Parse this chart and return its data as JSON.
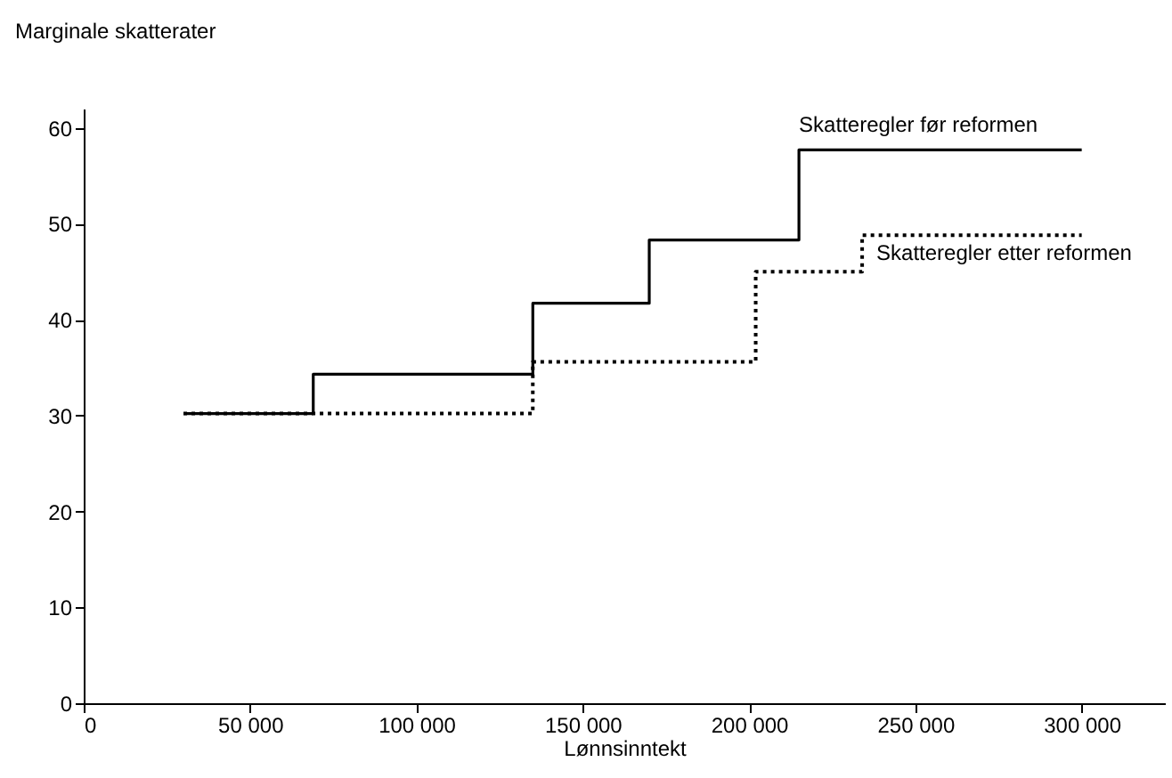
{
  "chart_data": {
    "type": "step",
    "ylabel": "Marginale skatterater",
    "xlabel": "Lønnsinntekt",
    "xlim": [
      0,
      325000
    ],
    "ylim": [
      0,
      62
    ],
    "xticks": [
      0,
      {
        "value": 50000,
        "label": "50 000"
      },
      {
        "value": 100000,
        "label": "100 000"
      },
      {
        "value": 150000,
        "label": "150 000"
      },
      {
        "value": 200000,
        "label": "200 000"
      },
      {
        "value": 250000,
        "label": "250 000"
      },
      {
        "value": 300000,
        "label": "300 000"
      }
    ],
    "yticks": [
      0,
      10,
      20,
      30,
      40,
      50,
      60
    ],
    "grid": false,
    "legend": false,
    "series": [
      {
        "name": "Skatteregler før reformen",
        "color": "#000000",
        "line_style": "solid",
        "x": [
          30000,
          69000,
          135000,
          170000,
          215000,
          300000
        ],
        "values": [
          30.2,
          34.3,
          41.7,
          48.3,
          57.7,
          57.7
        ]
      },
      {
        "name": "Skatteregler etter reformen",
        "color": "#000000",
        "line_style": "dotted",
        "x": [
          30000,
          135000,
          202000,
          234000,
          300000
        ],
        "values": [
          30.2,
          35.6,
          45,
          48.8,
          48.8
        ]
      }
    ]
  }
}
